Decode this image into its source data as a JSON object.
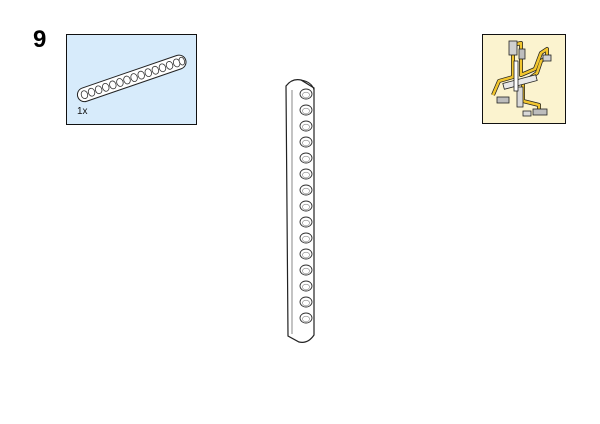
{
  "step": {
    "number": "9"
  },
  "parts_list": {
    "items": [
      {
        "name": "beam-15",
        "quantity": "1x"
      }
    ]
  },
  "colors": {
    "parts_background": "#d7ebfb",
    "preview_background": "#fbf3cf",
    "beam_white": "#ffffff",
    "model_yellow": "#f2c62e"
  }
}
